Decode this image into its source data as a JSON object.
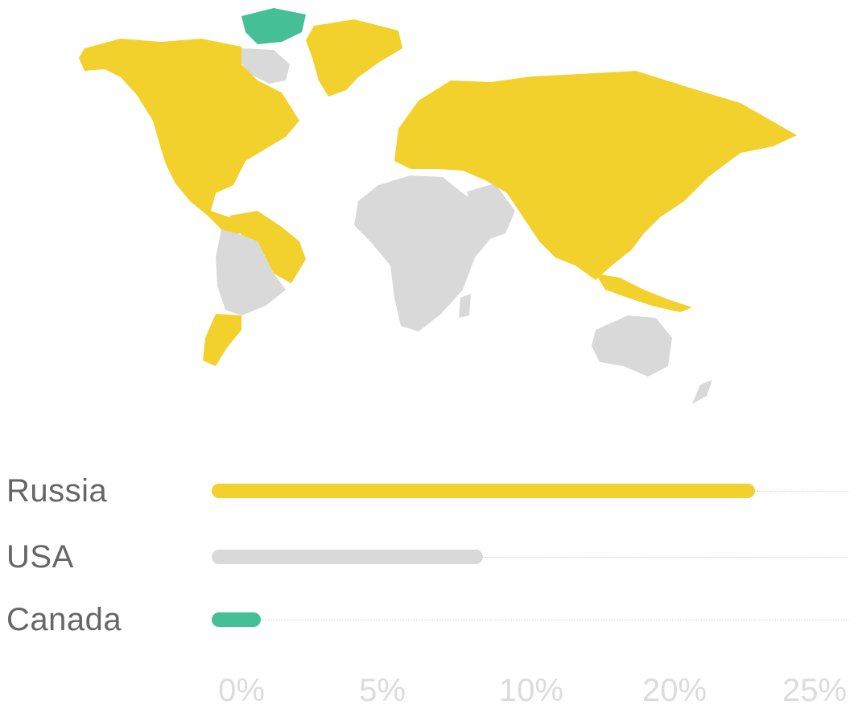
{
  "chart_data": {
    "type": "bar",
    "orientation": "horizontal",
    "categories": [
      "Russia",
      "USA",
      "Canada"
    ],
    "values": [
      22,
      11,
      2
    ],
    "colors": [
      "#f2d12c",
      "#d9d9d9",
      "#45bf96"
    ],
    "ticks": [
      "0%",
      "5%",
      "10%",
      "20%",
      "25%"
    ],
    "legend_map": {
      "highlight_color": "#f2d12c",
      "neutral_color": "#d9d9d9",
      "accent_color": "#45bf96"
    }
  }
}
